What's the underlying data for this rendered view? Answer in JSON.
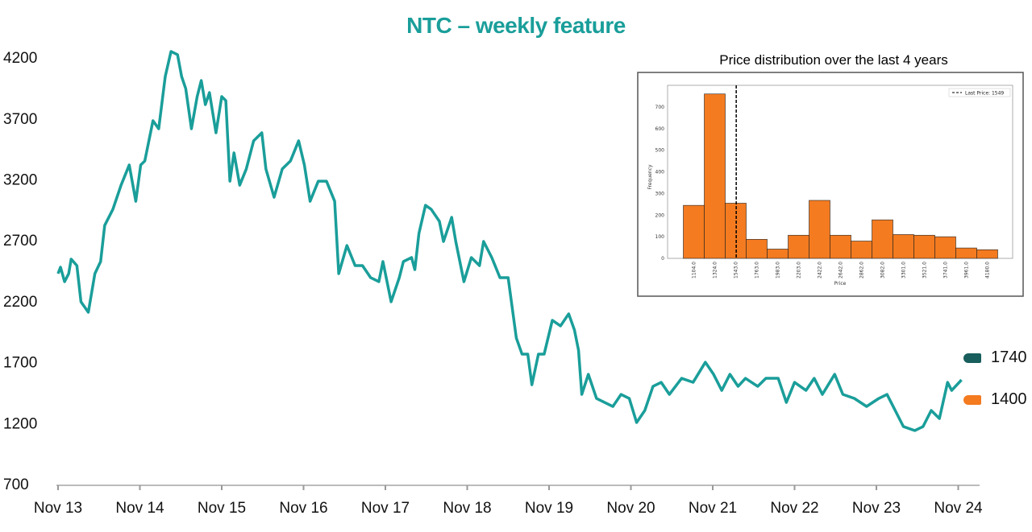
{
  "title": "NTC – weekly feature",
  "legend": [
    {
      "label": "1740",
      "color": "#175e5c"
    },
    {
      "label": "1400",
      "color": "#f47b20"
    }
  ],
  "chart_data": [
    {
      "type": "line",
      "title": "NTC – weekly feature",
      "xlabel": "",
      "ylabel": "",
      "x_unit": "years since Nov 13",
      "xticks": [
        "Nov 13",
        "Nov 14",
        "Nov 15",
        "Nov 16",
        "Nov 17",
        "Nov 18",
        "Nov 19",
        "Nov 20",
        "Nov 21",
        "Nov 22",
        "Nov 23",
        "Nov 24"
      ],
      "yticks": [
        700,
        1200,
        1700,
        2200,
        2700,
        3200,
        3700,
        4200
      ],
      "ylim": [
        700,
        4200
      ],
      "xlim": [
        0,
        11.3
      ],
      "color": "#1a9e9a",
      "x": [
        0,
        0.03,
        0.08,
        0.13,
        0.16,
        0.23,
        0.28,
        0.37,
        0.45,
        0.52,
        0.57,
        0.67,
        0.77,
        0.87,
        0.95,
        1.01,
        1.06,
        1.16,
        1.23,
        1.31,
        1.38,
        1.46,
        1.51,
        1.56,
        1.63,
        1.7,
        1.75,
        1.8,
        1.85,
        1.93,
        2.0,
        2.05,
        2.1,
        2.15,
        2.22,
        2.3,
        2.39,
        2.49,
        2.54,
        2.64,
        2.74,
        2.84,
        2.94,
        3.01,
        3.08,
        3.18,
        3.28,
        3.38,
        3.43,
        3.53,
        3.63,
        3.72,
        3.82,
        3.92,
        3.97,
        4.07,
        4.17,
        4.22,
        4.32,
        4.36,
        4.41,
        4.49,
        4.56,
        4.66,
        4.71,
        4.81,
        4.86,
        4.96,
        5.05,
        5.15,
        5.2,
        5.3,
        5.4,
        5.5,
        5.6,
        5.67,
        5.74,
        5.79,
        5.87,
        5.94,
        6.04,
        6.14,
        6.24,
        6.31,
        6.36,
        6.4,
        6.48,
        6.58,
        6.68,
        6.78,
        6.88,
        6.98,
        7.07,
        7.17,
        7.27,
        7.37,
        7.47,
        7.62,
        7.76,
        7.91,
        8.01,
        8.11,
        8.21,
        8.31,
        8.4,
        8.55,
        8.65,
        8.8,
        8.9,
        9.0,
        9.14,
        9.24,
        9.34,
        9.49,
        9.59,
        9.73,
        9.88,
        10.03,
        10.13,
        10.23,
        10.33,
        10.47,
        10.57,
        10.67,
        10.77,
        10.87,
        10.92,
        11.04
      ],
      "y": [
        2424,
        2477,
        2358,
        2424,
        2543,
        2490,
        2193,
        2107,
        2424,
        2523,
        2820,
        2952,
        3150,
        3316,
        3018,
        3316,
        3349,
        3679,
        3613,
        4042,
        4247,
        4221,
        4042,
        3943,
        3613,
        3877,
        4009,
        3811,
        3910,
        3580,
        3877,
        3844,
        3183,
        3415,
        3150,
        3283,
        3514,
        3580,
        3283,
        3051,
        3283,
        3349,
        3514,
        3316,
        3018,
        3183,
        3183,
        3018,
        2424,
        2655,
        2490,
        2490,
        2391,
        2358,
        2523,
        2193,
        2391,
        2523,
        2556,
        2457,
        2754,
        2985,
        2952,
        2853,
        2688,
        2886,
        2688,
        2358,
        2556,
        2490,
        2688,
        2556,
        2391,
        2391,
        1896,
        1763,
        1763,
        1512,
        1763,
        1763,
        2041,
        1995,
        2094,
        1962,
        1796,
        1433,
        1598,
        1400,
        1367,
        1334,
        1433,
        1400,
        1202,
        1301,
        1499,
        1532,
        1433,
        1565,
        1532,
        1697,
        1598,
        1466,
        1598,
        1499,
        1565,
        1499,
        1565,
        1565,
        1367,
        1532,
        1466,
        1565,
        1433,
        1598,
        1433,
        1400,
        1334,
        1400,
        1433,
        1301,
        1169,
        1136,
        1169,
        1301,
        1235,
        1532,
        1466,
        1552
      ]
    },
    {
      "type": "bar",
      "title": "Price distribution over the last 4 years",
      "xlabel": "Price",
      "ylabel": "Frequency",
      "categories": [
        "1104.0",
        "1324.0",
        "1543.0",
        "1763.0",
        "1983.0",
        "2203.0",
        "2422.0",
        "2642.0",
        "2862.0",
        "3082.0",
        "3301.0",
        "3521.0",
        "3741.0",
        "3961.0",
        "4180.0"
      ],
      "values": [
        245,
        760,
        255,
        88,
        43,
        107,
        268,
        107,
        80,
        178,
        110,
        107,
        100,
        48,
        40
      ],
      "yticks": [
        0,
        100,
        200,
        300,
        400,
        500,
        600,
        700
      ],
      "ylim": [
        0,
        800
      ],
      "color": "#f47b20",
      "vline": {
        "value": 1549,
        "label": "Last Price: 1549"
      }
    }
  ]
}
